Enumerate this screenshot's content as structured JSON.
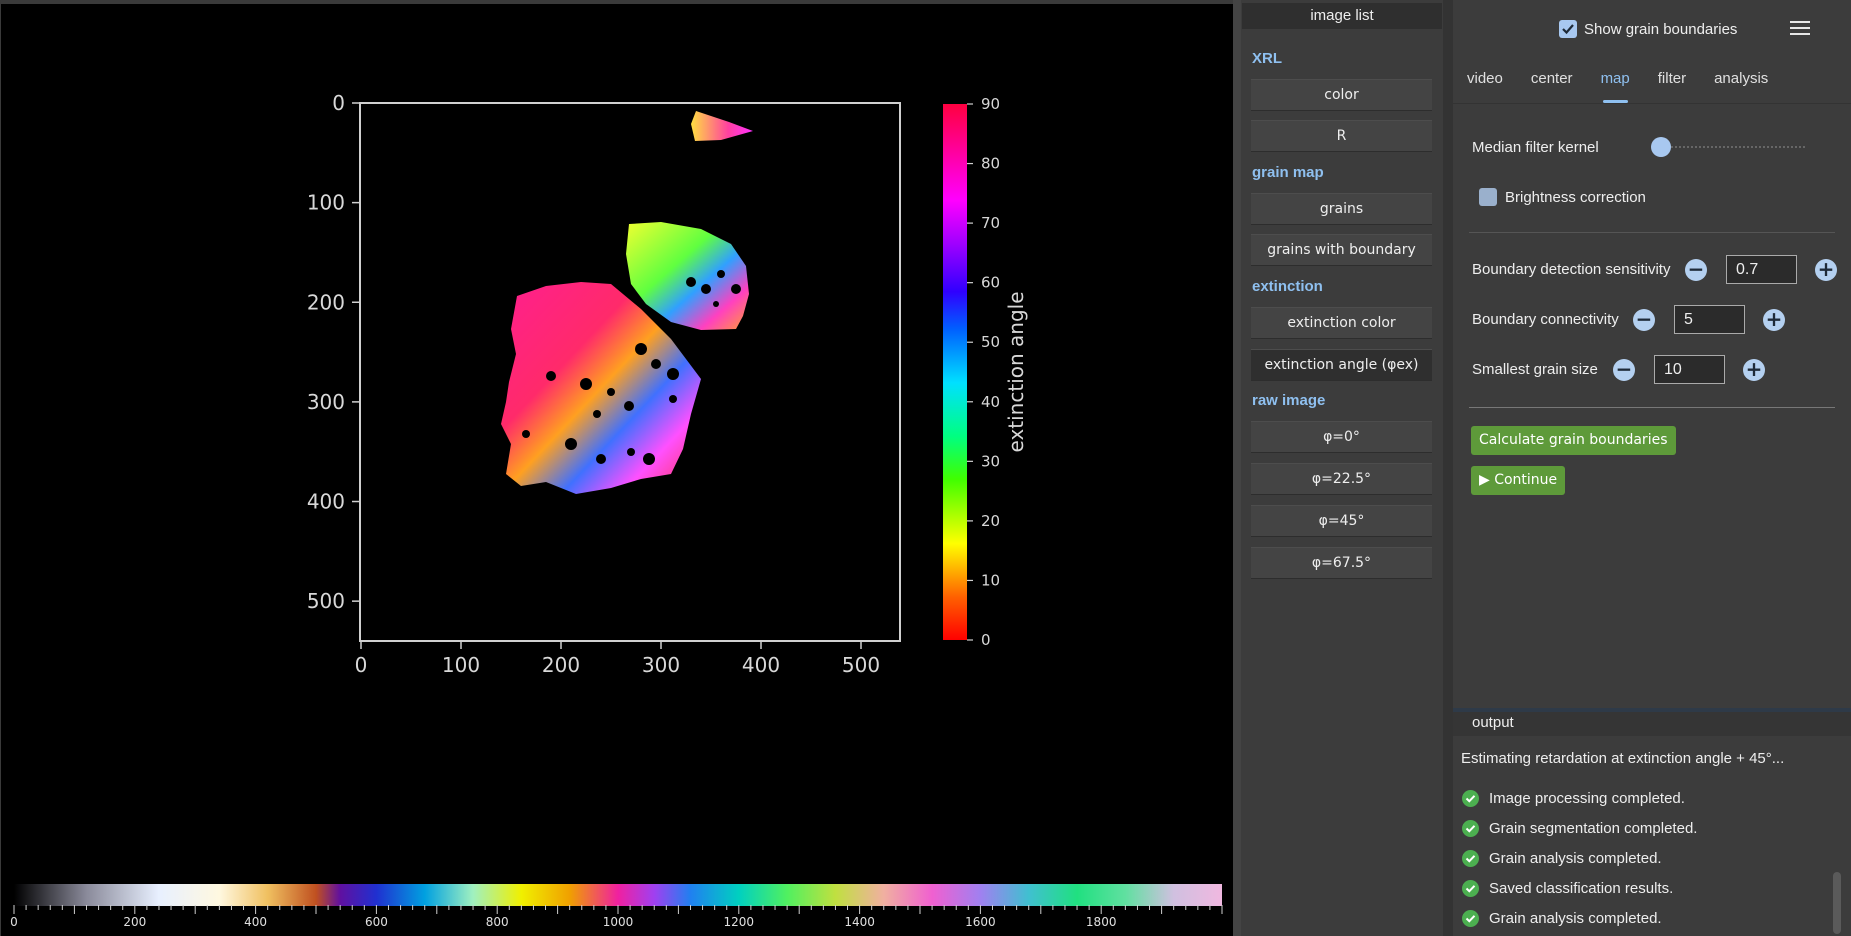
{
  "image_plot": {
    "y_ticks": [
      "0",
      "100",
      "200",
      "300",
      "400",
      "500"
    ],
    "x_ticks": [
      "0",
      "100",
      "200",
      "300",
      "400",
      "500"
    ],
    "colorbar_ticks": [
      "0",
      "10",
      "20",
      "30",
      "40",
      "50",
      "60",
      "70",
      "80",
      "90"
    ],
    "colorbar_label": "extinction angle"
  },
  "retardation_bar": {
    "tick_labels": [
      "0",
      "200",
      "400",
      "600",
      "800",
      "1000",
      "1200",
      "1400",
      "1600",
      "1800"
    ]
  },
  "image_list": {
    "title": "image list",
    "groups": [
      {
        "label": "XRL",
        "items": [
          "color",
          "R"
        ]
      },
      {
        "label": "grain map",
        "items": [
          "grains",
          "grains with boundary"
        ]
      },
      {
        "label": "extinction",
        "items": [
          "extinction color",
          "extinction angle (φex)"
        ]
      },
      {
        "label": "raw image",
        "items": [
          "φ=0°",
          "φ=22.5°",
          "φ=45°",
          "φ=67.5°"
        ]
      }
    ],
    "active_item": "extinction angle (φex)"
  },
  "settings": {
    "show_grain_boundaries_label": "Show grain boundaries",
    "tabs": [
      "video",
      "center",
      "map",
      "filter",
      "analysis"
    ],
    "active_tab": "map",
    "median_filter_label": "Median filter kernel",
    "median_filter_level": 0,
    "brightness_label": "Brightness correction",
    "boundary_sensitivity_label": "Boundary detection sensitivity",
    "boundary_sensitivity_value": "0.7",
    "boundary_connectivity_label": "Boundary connectivity",
    "boundary_connectivity_value": "5",
    "smallest_grain_label": "Smallest grain size",
    "smallest_grain_value": "10",
    "calculate_button": "Calculate grain boundaries",
    "continue_button": "▶ Continue"
  },
  "output": {
    "title": "output",
    "header": "Estimating retardation at extinction angle + 45°...",
    "lines": [
      "Image processing completed.",
      "Grain segmentation completed.",
      "Grain analysis completed.",
      "Saved classification results.",
      "Grain analysis completed."
    ]
  },
  "colors": {
    "accent": "#8fc0f0",
    "green_button": "#5e9a3a",
    "ok_icon": "#4caf50"
  }
}
